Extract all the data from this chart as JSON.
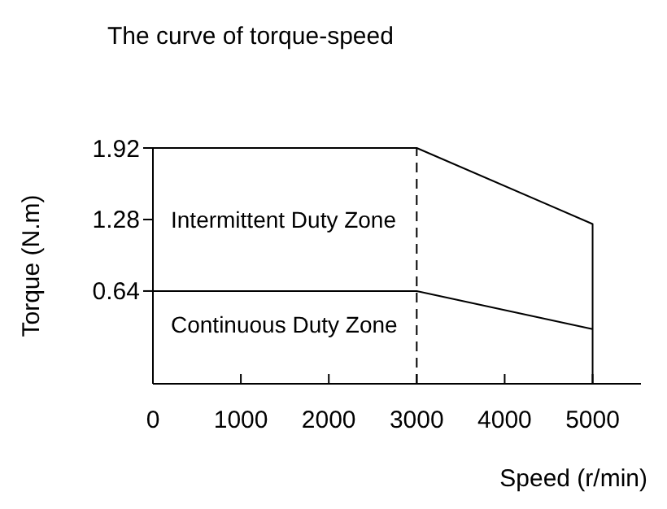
{
  "chart_data": {
    "type": "line",
    "title": "The curve of torque-speed",
    "xlabel": "Speed (r/min)",
    "ylabel": "Torque (N.m)",
    "xlim": [
      0,
      5550
    ],
    "xticks": [
      0,
      1000,
      2000,
      3000,
      4000,
      5000
    ],
    "ylim": [
      -0.19,
      1.92
    ],
    "yticks": [
      0.64,
      1.28,
      1.92
    ],
    "series": [
      {
        "color": "#000000",
        "x": [
          0,
          3000,
          5000,
          5000
        ],
        "values": [
          1.92,
          1.92,
          1.24,
          -0.19
        ]
      },
      {
        "color": "#000000",
        "x": [
          0,
          3000,
          5000
        ],
        "values": [
          0.64,
          0.64,
          0.3
        ]
      }
    ],
    "ref_lines": [
      {
        "axis": "x",
        "value": 3000,
        "line_style": "dashed",
        "color": "#000000"
      }
    ],
    "annotations": [
      "Intermittent Duty Zone",
      "Continuous Duty Zone"
    ],
    "grid": false,
    "marker": "none",
    "line_style": "solid"
  }
}
